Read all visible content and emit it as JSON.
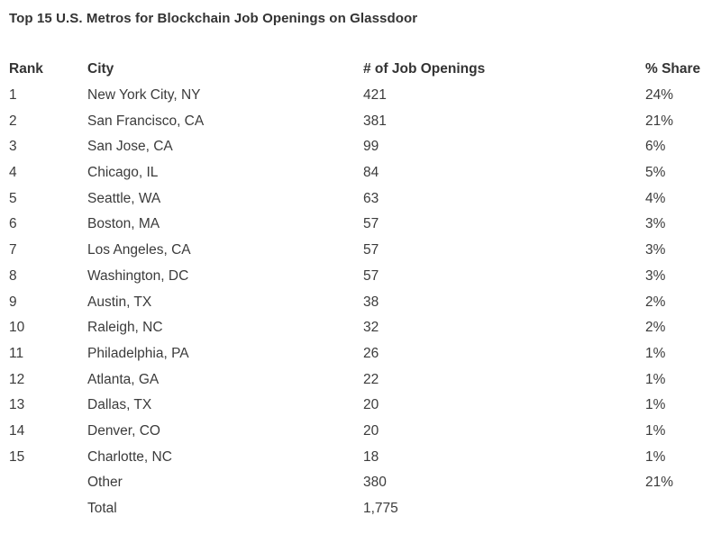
{
  "title": "Top 15 U.S. Metros for Blockchain Job Openings on Glassdoor",
  "colors": {
    "background": "#ffffff",
    "text": "#3b3b3b",
    "title": "#333333"
  },
  "chart_data": {
    "type": "table",
    "title": "Top 15 U.S. Metros for Blockchain Job Openings on Glassdoor",
    "columns": [
      "Rank",
      "City",
      "# of Job Openings",
      "% Share"
    ],
    "rows": [
      [
        "1",
        "New York City, NY",
        "421",
        "24%"
      ],
      [
        "2",
        "San Francisco, CA",
        "381",
        "21%"
      ],
      [
        "3",
        "San Jose, CA",
        "99",
        "6%"
      ],
      [
        "4",
        "Chicago, IL",
        "84",
        "5%"
      ],
      [
        "5",
        "Seattle, WA",
        "63",
        "4%"
      ],
      [
        "6",
        "Boston, MA",
        "57",
        "3%"
      ],
      [
        "7",
        "Los Angeles, CA",
        "57",
        "3%"
      ],
      [
        "8",
        "Washington, DC",
        "57",
        "3%"
      ],
      [
        "9",
        "Austin, TX",
        "38",
        "2%"
      ],
      [
        "10",
        "Raleigh, NC",
        "32",
        "2%"
      ],
      [
        "11",
        "Philadelphia, PA",
        "26",
        "1%"
      ],
      [
        "12",
        "Atlanta, GA",
        "22",
        "1%"
      ],
      [
        "13",
        "Dallas, TX",
        "20",
        "1%"
      ],
      [
        "14",
        "Denver, CO",
        "20",
        "1%"
      ],
      [
        "15",
        "Charlotte, NC",
        "18",
        "1%"
      ],
      [
        "",
        "Other",
        "380",
        "21%"
      ],
      [
        "",
        "Total",
        "1,775",
        ""
      ]
    ],
    "total_openings": "1,775"
  }
}
